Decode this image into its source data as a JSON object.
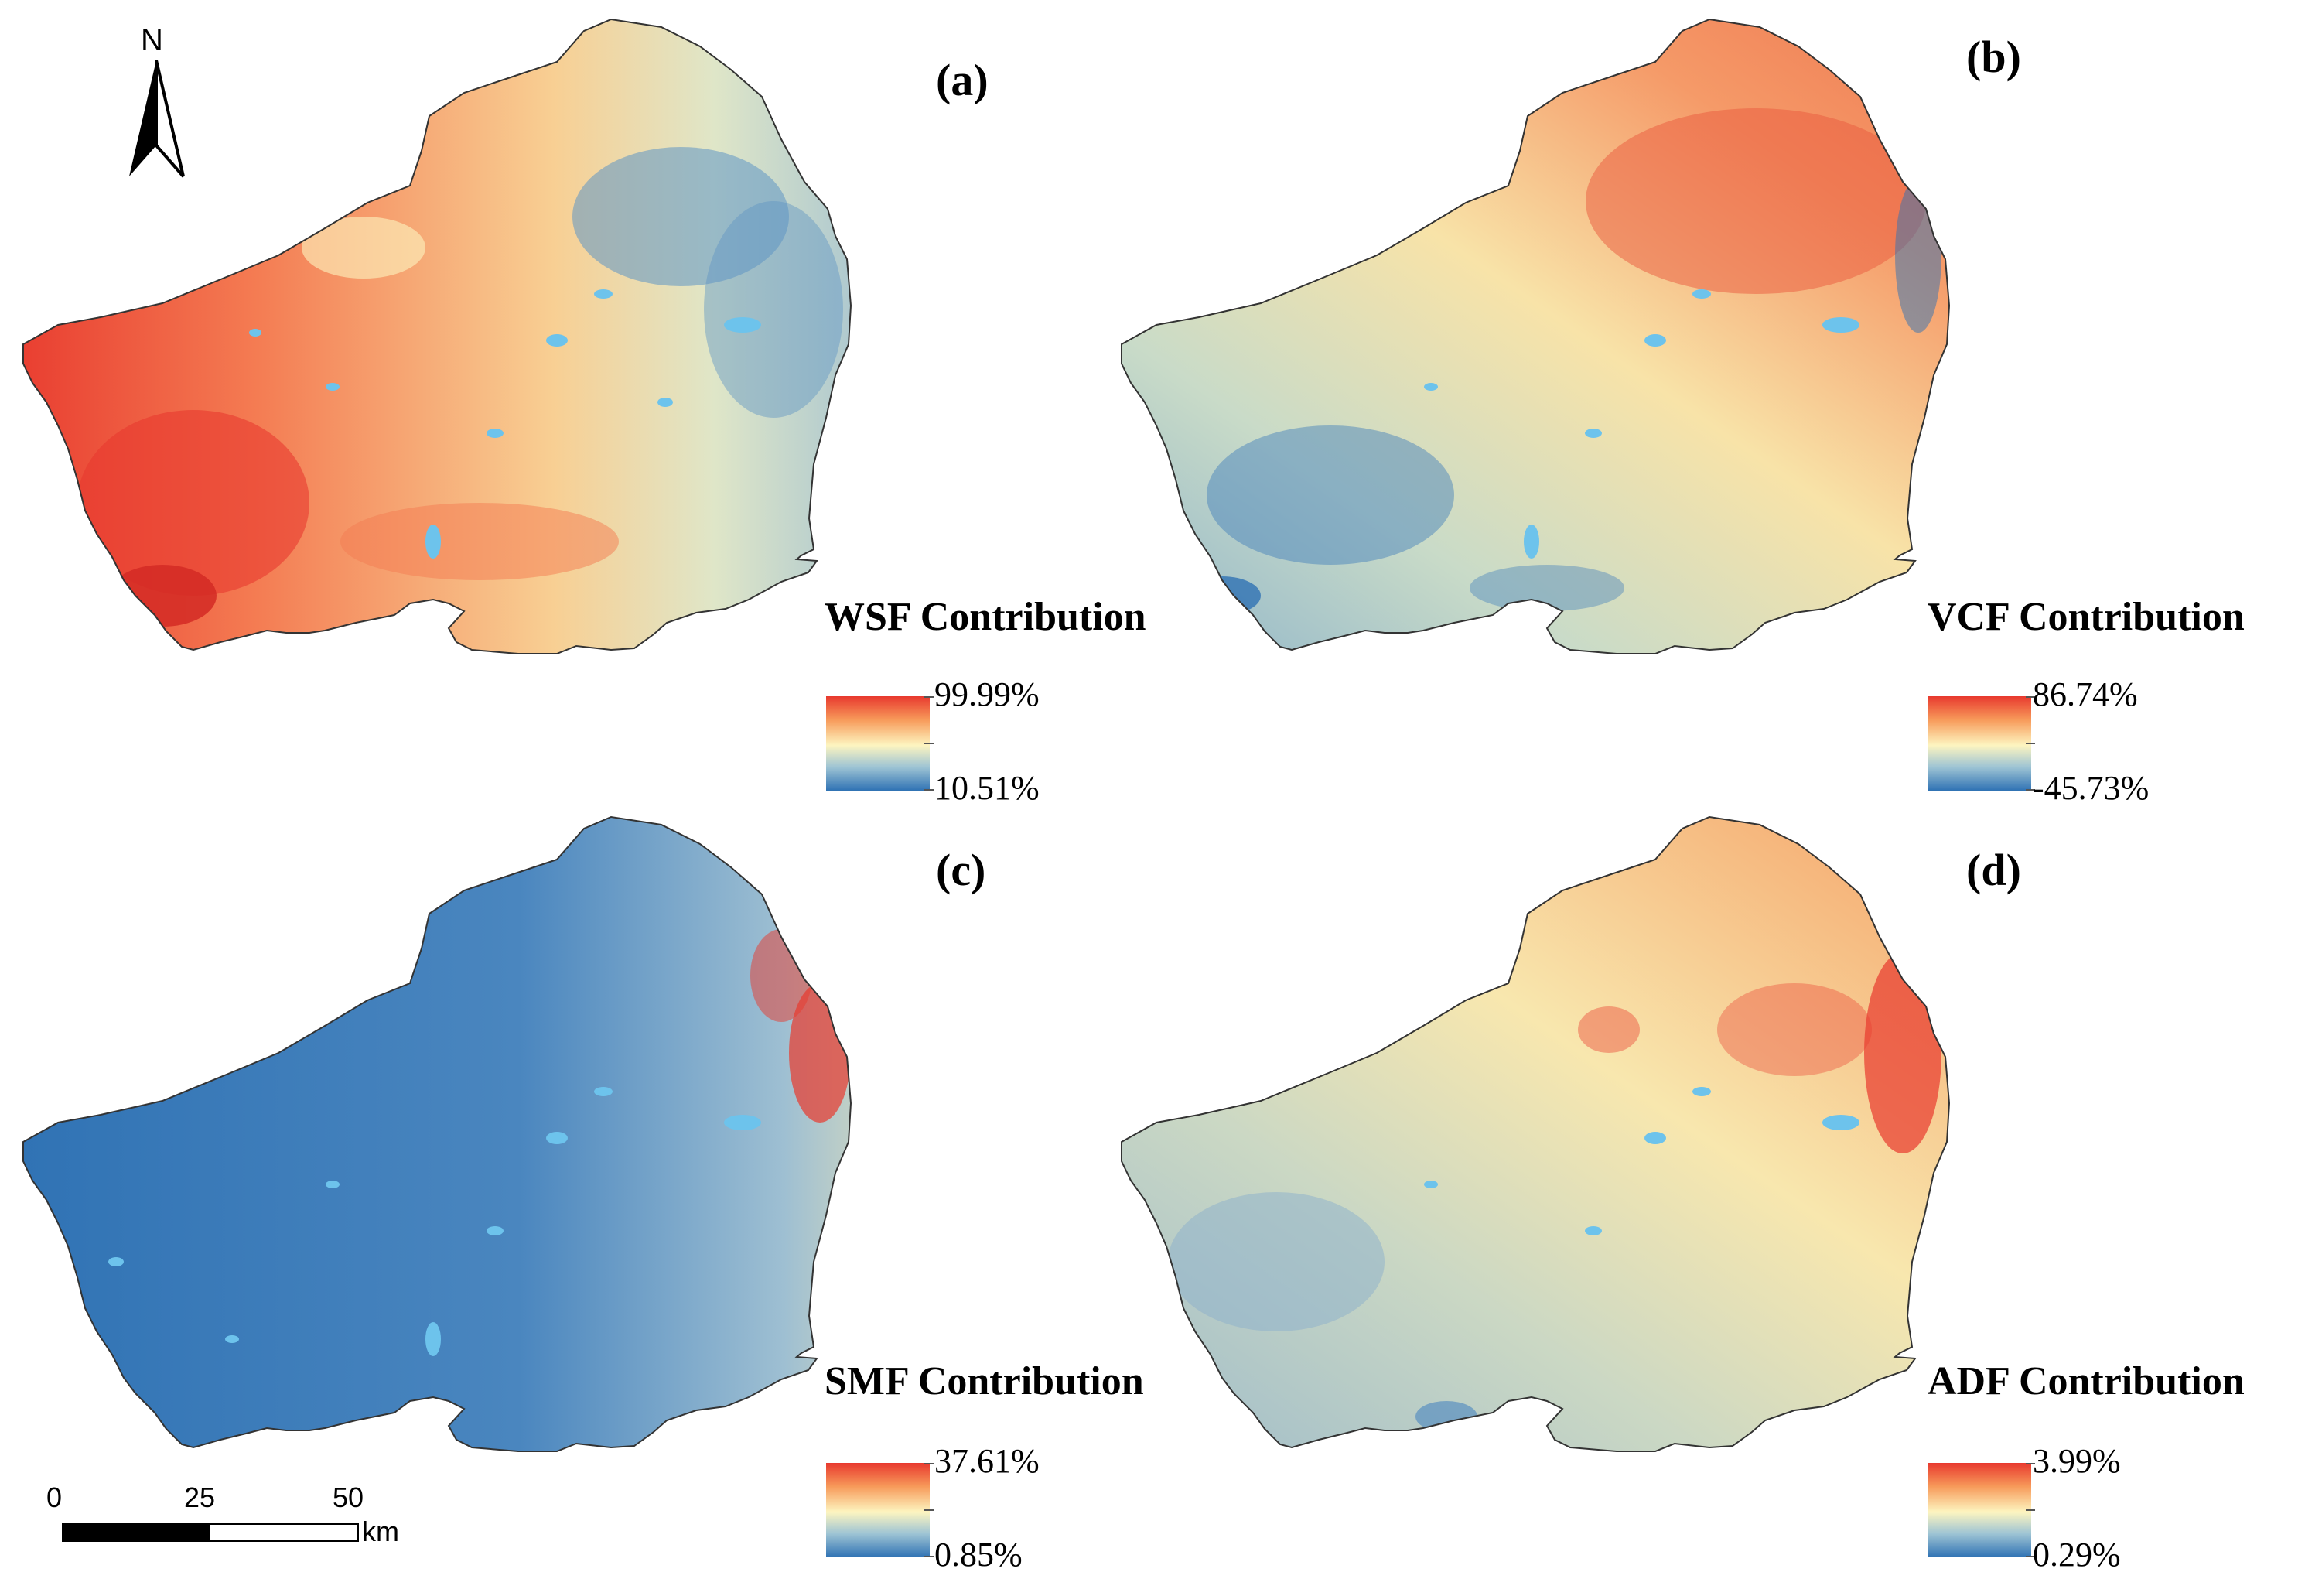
{
  "north_arrow": {
    "letter": "N"
  },
  "scale_bar": {
    "labels": [
      "0",
      "25",
      "50"
    ],
    "unit": "km"
  },
  "panels": [
    {
      "id": "a",
      "label": "(a)",
      "legend_title": "WSF Contribution",
      "max": "99.99%",
      "min": "10.51%",
      "pattern": "west-high",
      "colors": {
        "high": "#e8392e",
        "mid": "#fdf5c0",
        "low": "#2f72b4",
        "water": "#6dc3ec"
      }
    },
    {
      "id": "b",
      "label": "(b)",
      "legend_title": "VCF Contribution",
      "max": "86.74%",
      "min": "-45.73%",
      "pattern": "northeast-high",
      "colors": {
        "high": "#e8392e",
        "mid": "#fdf5c0",
        "low": "#2f72b4",
        "water": "#6dc3ec"
      }
    },
    {
      "id": "c",
      "label": "(c)",
      "legend_title": "SMF Contribution",
      "max": "37.61%",
      "min": "0.85%",
      "pattern": "east-high-mostly-low",
      "colors": {
        "high": "#e8392e",
        "mid": "#fdf5c0",
        "low": "#2f72b4",
        "water": "#6dc3ec"
      }
    },
    {
      "id": "d",
      "label": "(d)",
      "legend_title": "ADF Contribution",
      "max": "3.99%",
      "min": "0.29%",
      "pattern": "northeast-hotspots",
      "colors": {
        "high": "#e8392e",
        "mid": "#fdf5c0",
        "low": "#2f72b4",
        "water": "#6dc3ec"
      }
    }
  ]
}
